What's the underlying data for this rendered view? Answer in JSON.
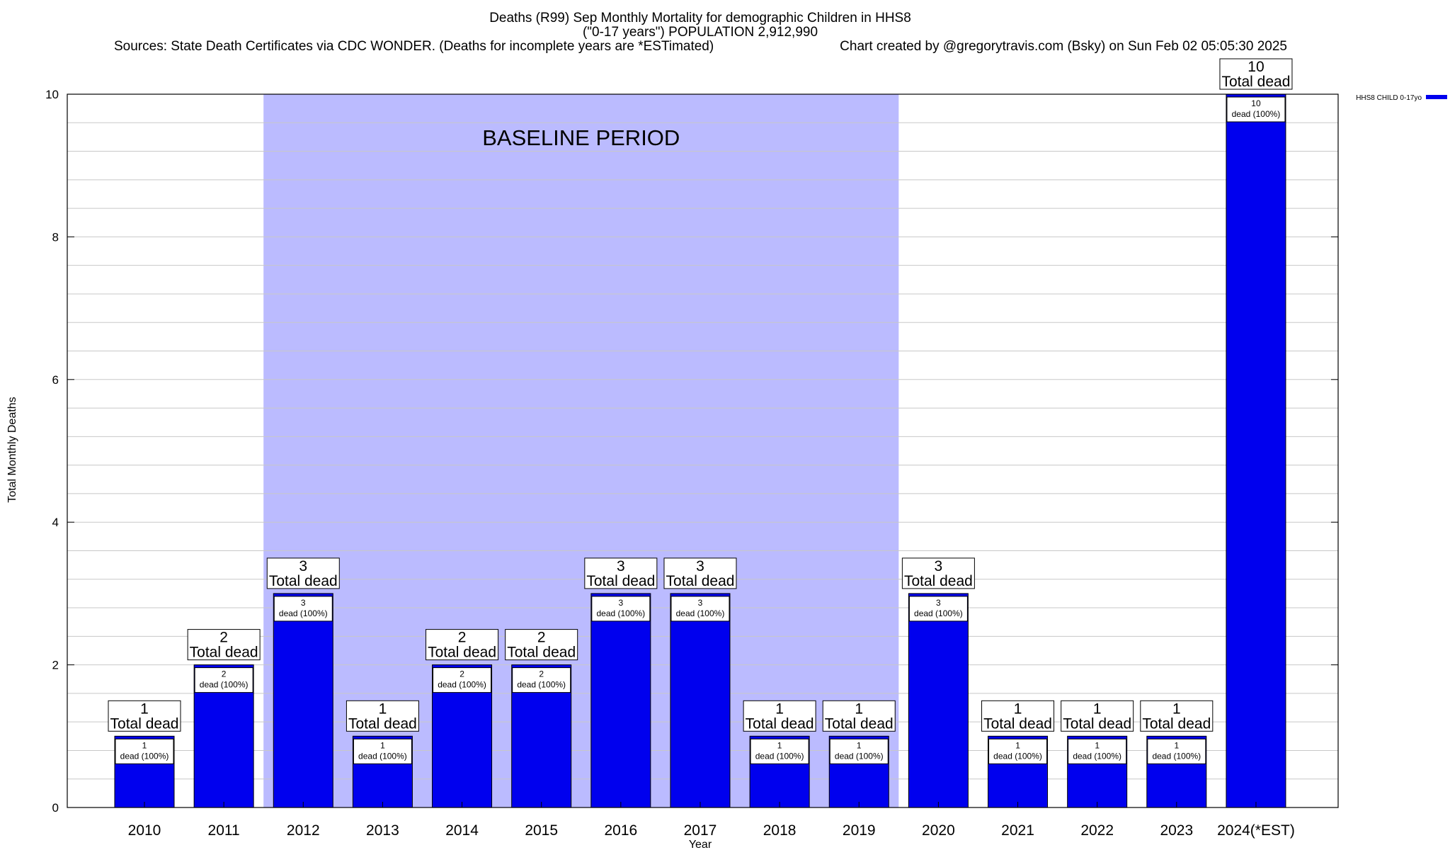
{
  "chart_data": {
    "type": "bar",
    "title_lines": [
      "Deaths (R99) Sep Monthly Mortality for demographic Children in HHS8",
      "(\"0-17 years\") POPULATION 2,912,990"
    ],
    "source_text": "Sources: State Death Certificates via CDC WONDER. (Deaths for incomplete years are *ESTimated)",
    "credit_text": "Chart created by @gregorytravis.com (Bsky) on Sun Feb 02 05:05:30 2025",
    "xlabel": "Year",
    "ylabel": "Total Monthly Deaths",
    "ylim": [
      0,
      10
    ],
    "yticks": [
      0,
      2,
      4,
      6,
      8,
      10
    ],
    "categories": [
      "2010",
      "2011",
      "2012",
      "2013",
      "2014",
      "2015",
      "2016",
      "2017",
      "2018",
      "2019",
      "2020",
      "2021",
      "2022",
      "2023",
      "2024(*EST)"
    ],
    "series": [
      {
        "name": "HHS8 CHILD 0-17yo",
        "color": "#0000ee",
        "values": [
          1,
          2,
          3,
          1,
          2,
          2,
          3,
          3,
          1,
          1,
          3,
          1,
          1,
          1,
          10
        ]
      }
    ],
    "total_labels": [
      "1",
      "2",
      "3",
      "1",
      "2",
      "2",
      "3",
      "3",
      "1",
      "1",
      "3",
      "1",
      "1",
      "1",
      "10"
    ],
    "total_suffix": "Total dead",
    "inner_labels": [
      "1",
      "2",
      "3",
      "1",
      "2",
      "2",
      "3",
      "3",
      "1",
      "1",
      "3",
      "1",
      "1",
      "1",
      "10"
    ],
    "inner_suffix": "dead (100%)",
    "baseline_region": {
      "label": "BASELINE PERIOD",
      "from": "2012",
      "to": "2019",
      "color": "#bbbbff"
    },
    "grid": true,
    "legend_position": "top-right"
  }
}
